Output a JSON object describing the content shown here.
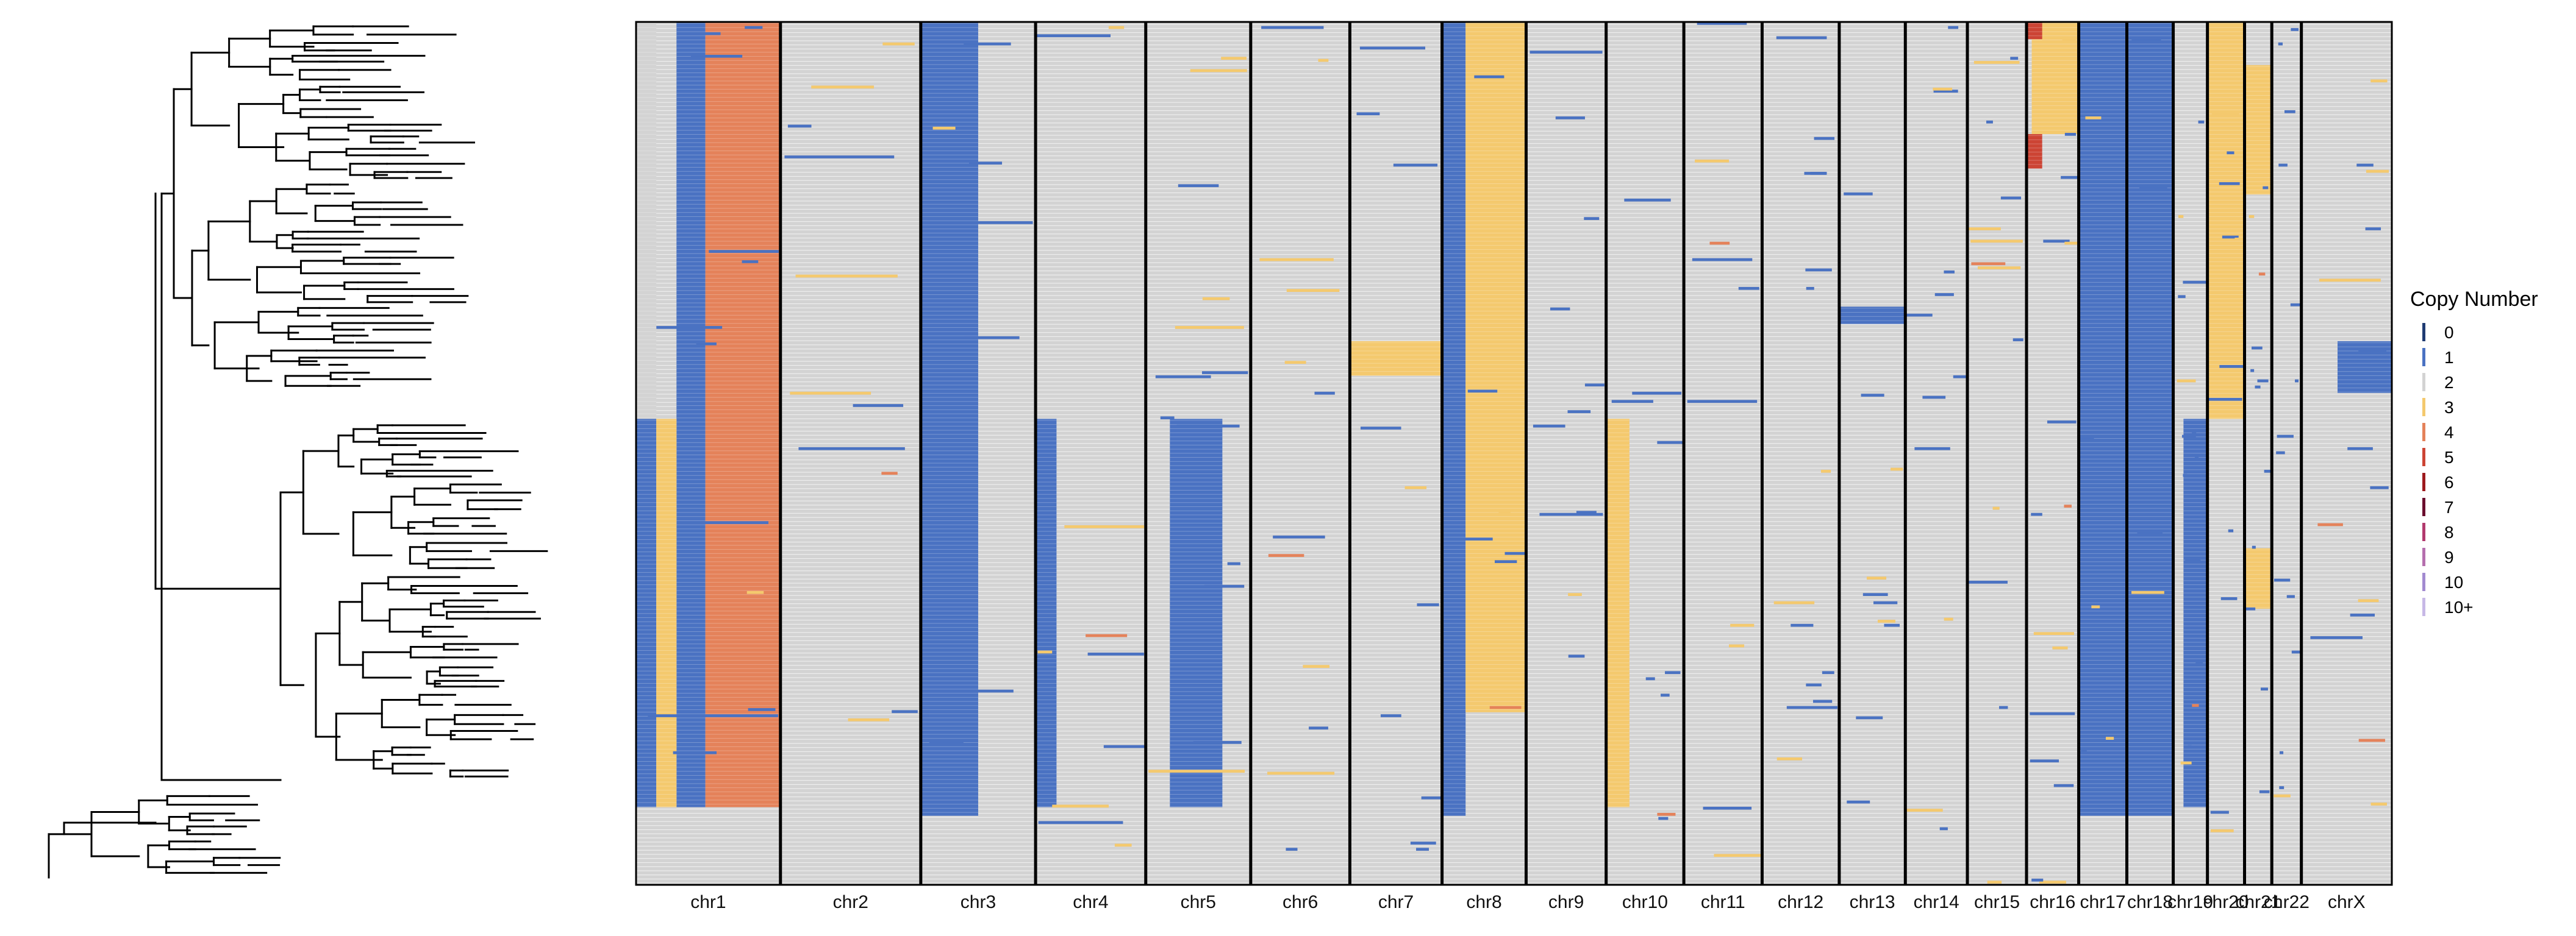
{
  "chart_data": {
    "type": "heatmap",
    "title": "",
    "xlabel": "",
    "ylabel": "",
    "n_cells": 420,
    "chromosomes": [
      {
        "name": "chr1",
        "size": 249
      },
      {
        "name": "chr2",
        "size": 242
      },
      {
        "name": "chr3",
        "size": 198
      },
      {
        "name": "chr4",
        "size": 190
      },
      {
        "name": "chr5",
        "size": 181
      },
      {
        "name": "chr6",
        "size": 171
      },
      {
        "name": "chr7",
        "size": 159
      },
      {
        "name": "chr8",
        "size": 145
      },
      {
        "name": "chr9",
        "size": 138
      },
      {
        "name": "chr10",
        "size": 134
      },
      {
        "name": "chr11",
        "size": 135
      },
      {
        "name": "chr12",
        "size": 133
      },
      {
        "name": "chr13",
        "size": 114
      },
      {
        "name": "chr14",
        "size": 107
      },
      {
        "name": "chr15",
        "size": 102
      },
      {
        "name": "chr16",
        "size": 90
      },
      {
        "name": "chr17",
        "size": 83
      },
      {
        "name": "chr18",
        "size": 80
      },
      {
        "name": "chr19",
        "size": 59
      },
      {
        "name": "chr20",
        "size": 64
      },
      {
        "name": "chr21",
        "size": 47
      },
      {
        "name": "chr22",
        "size": 51
      },
      {
        "name": "chrX",
        "size": 156
      }
    ],
    "default_state": "2",
    "clone_blocks": [
      {
        "chr": "chr1",
        "start": 0.0,
        "end": 0.14,
        "row_start": 0.0,
        "row_end": 0.46,
        "state": "2"
      },
      {
        "chr": "chr1",
        "start": 0.28,
        "end": 0.48,
        "row_start": 0.0,
        "row_end": 0.91,
        "state": "1"
      },
      {
        "chr": "chr1",
        "start": 0.48,
        "end": 1.0,
        "row_start": 0.0,
        "row_end": 0.91,
        "state": "4"
      },
      {
        "chr": "chr1",
        "start": 0.0,
        "end": 0.14,
        "row_start": 0.46,
        "row_end": 0.91,
        "state": "1"
      },
      {
        "chr": "chr1",
        "start": 0.14,
        "end": 0.28,
        "row_start": 0.46,
        "row_end": 0.91,
        "state": "3"
      },
      {
        "chr": "chr3",
        "start": 0.0,
        "end": 0.5,
        "row_start": 0.0,
        "row_end": 0.92,
        "state": "1"
      },
      {
        "chr": "chr4",
        "start": 0.0,
        "end": 0.19,
        "row_start": 0.46,
        "row_end": 0.91,
        "state": "1"
      },
      {
        "chr": "chr5",
        "start": 0.23,
        "end": 0.73,
        "row_start": 0.46,
        "row_end": 0.91,
        "state": "1"
      },
      {
        "chr": "chr7",
        "start": 0.0,
        "end": 1.0,
        "row_start": 0.37,
        "row_end": 0.41,
        "state": "3"
      },
      {
        "chr": "chr8",
        "start": 0.0,
        "end": 0.28,
        "row_start": 0.0,
        "row_end": 0.92,
        "state": "1"
      },
      {
        "chr": "chr8",
        "start": 0.28,
        "end": 1.0,
        "row_start": 0.0,
        "row_end": 0.8,
        "state": "3"
      },
      {
        "chr": "chr10",
        "start": 0.0,
        "end": 0.3,
        "row_start": 0.46,
        "row_end": 0.91,
        "state": "3"
      },
      {
        "chr": "chr13",
        "start": 0.0,
        "end": 1.0,
        "row_start": 0.33,
        "row_end": 0.35,
        "state": "1"
      },
      {
        "chr": "chr16",
        "start": 0.1,
        "end": 1.0,
        "row_start": 0.0,
        "row_end": 0.13,
        "state": "3"
      },
      {
        "chr": "chr16",
        "start": 0.0,
        "end": 0.3,
        "row_start": 0.0,
        "row_end": 0.02,
        "state": "5"
      },
      {
        "chr": "chr16",
        "start": 0.0,
        "end": 0.3,
        "row_start": 0.13,
        "row_end": 0.17,
        "state": "5"
      },
      {
        "chr": "chr17",
        "start": 0.0,
        "end": 1.0,
        "row_start": 0.0,
        "row_end": 0.92,
        "state": "1"
      },
      {
        "chr": "chr18",
        "start": 0.0,
        "end": 1.0,
        "row_start": 0.0,
        "row_end": 0.92,
        "state": "1"
      },
      {
        "chr": "chr19",
        "start": 0.3,
        "end": 1.0,
        "row_start": 0.46,
        "row_end": 0.91,
        "state": "1"
      },
      {
        "chr": "chr20",
        "start": 0.0,
        "end": 1.0,
        "row_start": 0.0,
        "row_end": 0.46,
        "state": "3"
      },
      {
        "chr": "chr21",
        "start": 0.0,
        "end": 1.0,
        "row_start": 0.05,
        "row_end": 0.2,
        "state": "3"
      },
      {
        "chr": "chr21",
        "start": 0.0,
        "end": 1.0,
        "row_start": 0.61,
        "row_end": 0.68,
        "state": "3"
      },
      {
        "chr": "chrX",
        "start": 0.4,
        "end": 1.0,
        "row_start": 0.37,
        "row_end": 0.43,
        "state": "1"
      }
    ],
    "legend": {
      "title": "Copy Number",
      "placement": "right",
      "entries": [
        {
          "label": "0",
          "color": "#1f3b73"
        },
        {
          "label": "1",
          "color": "#4a72c2"
        },
        {
          "label": "2",
          "color": "#d3d3d3"
        },
        {
          "label": "3",
          "color": "#f4c96e"
        },
        {
          "label": "4",
          "color": "#e4825a"
        },
        {
          "label": "5",
          "color": "#cc4434"
        },
        {
          "label": "6",
          "color": "#9e1a1e"
        },
        {
          "label": "7",
          "color": "#6b0f2e"
        },
        {
          "label": "8",
          "color": "#b23a6e"
        },
        {
          "label": "9",
          "color": "#b56fae"
        },
        {
          "label": "10",
          "color": "#a28ad0"
        },
        {
          "label": "10+",
          "color": "#c7b8e6"
        }
      ]
    },
    "tree": {
      "description_of_structure": "phylogenetic tree with two major clades"
    }
  }
}
